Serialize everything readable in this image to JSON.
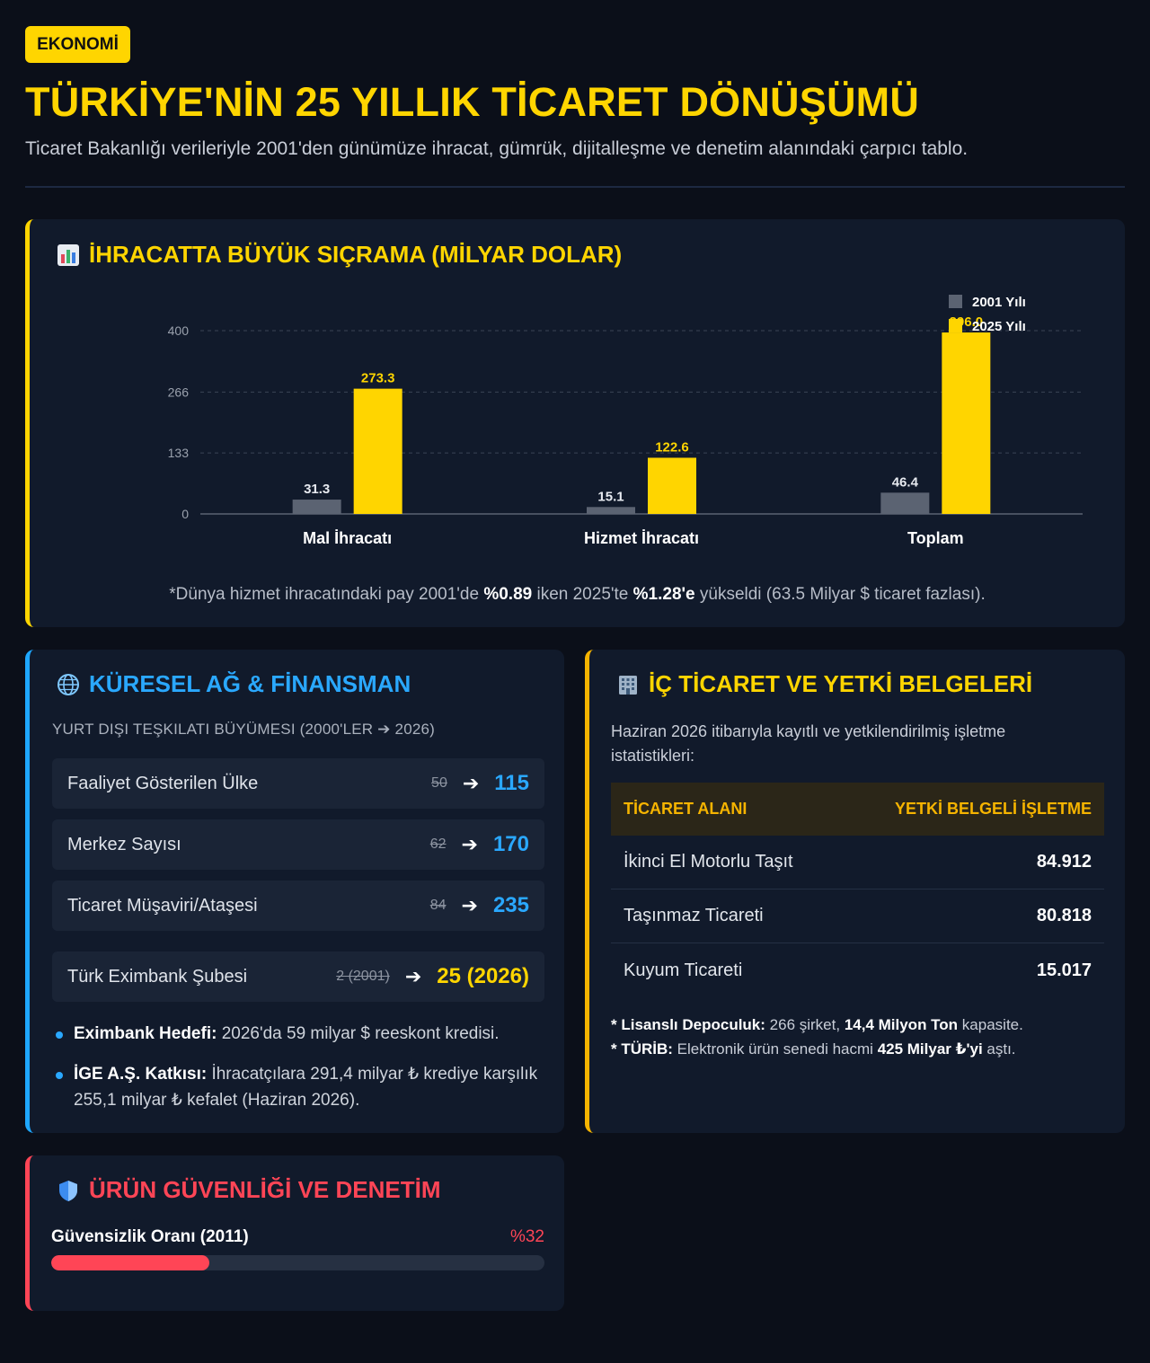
{
  "header": {
    "badge": "EKONOMİ",
    "title": "TÜRKİYE'NİN 25 YILLIK TİCARET DÖNÜŞÜMÜ",
    "subtitle": "Ticaret Bakanlığı verileriyle 2001'den günümüze ihracat, gümrük, dijitalleşme ve denetim alanındaki çarpıcı tablo."
  },
  "exports_card": {
    "title": "İHRACATTA BÜYÜK SIÇRAMA (MİLYAR DOLAR)",
    "icon": "bar-chart-icon",
    "note_pre": "*Dünya hizmet ihracatındaki pay 2001'de ",
    "note_b1": "%0.89",
    "note_mid": " iken 2025'te ",
    "note_b2": "%1.28'e",
    "note_post": " yükseldi (63.5 Milyar $ ticaret fazlası)."
  },
  "chart_data": {
    "type": "bar",
    "categories": [
      "Mal İhracatı",
      "Hizmet İhracatı",
      "Toplam"
    ],
    "series": [
      {
        "name": "2001 Yılı",
        "values": [
          31.3,
          15.1,
          46.4
        ],
        "color": "#5b6372"
      },
      {
        "name": "2025 Yılı",
        "values": [
          273.3,
          122.6,
          396.0
        ],
        "color": "#ffd500"
      }
    ],
    "data_labels": [
      [
        "31.3",
        "15.1",
        "46.4"
      ],
      [
        "273.3",
        "122.6",
        "396.0"
      ]
    ],
    "yticks": [
      0,
      133,
      266,
      400
    ],
    "ylim": [
      0,
      400
    ],
    "grid": true,
    "legend": "top-right",
    "xlabel": "",
    "ylabel": ""
  },
  "global_card": {
    "title": "KÜRESEL AĞ & FİNANSMAN",
    "icon": "globe-icon",
    "caption": "YURT DIŞI TEŞKILATI BÜYÜMESI (2000'LER ➔ 2026)",
    "rows": [
      {
        "label": "Faaliyet Gösterilen Ülke",
        "old": "50",
        "new": "115"
      },
      {
        "label": "Merkez Sayısı",
        "old": "62",
        "new": "170"
      },
      {
        "label": "Ticaret Müşaviri/Ataşesi",
        "old": "84",
        "new": "235"
      },
      {
        "label": "Türk Eximbank Şubesi",
        "old": "2 (2001)",
        "new": "25 (2026)"
      }
    ],
    "arrow": "➔",
    "bullets": [
      {
        "bold": "Eximbank Hedefi:",
        "text": " 2026'da 59 milyar $ reeskont kredisi."
      },
      {
        "bold": "İGE A.Ş. Katkısı:",
        "text": " İhracatçılara 291,4 milyar ₺ krediye karşılık 255,1 milyar ₺ kefalet (Haziran 2026)."
      }
    ]
  },
  "domestic_card": {
    "title": "İÇ TİCARET VE YETKİ BELGELERİ",
    "icon": "building-icon",
    "description": "Haziran 2026 itibarıyla kayıtlı ve yetkilendirilmiş işletme istatistikleri:",
    "col1": "TİCARET ALANI",
    "col2": "YETKİ BELGELİ İŞLETME",
    "rows": [
      {
        "area": "İkinci El Motorlu Taşıt",
        "count": "84.912"
      },
      {
        "area": "Taşınmaz Ticareti",
        "count": "80.818"
      },
      {
        "area": "Kuyum Ticareti",
        "count": "15.017"
      }
    ],
    "note1_bold": "* Lisanslı Depoculuk:",
    "note1_mid": " 266 şirket, ",
    "note1_bold2": "14,4 Milyon Ton",
    "note1_post": " kapasite.",
    "note2_bold": "* TÜRİB:",
    "note2_mid": " Elektronik ürün senedi hacmi ",
    "note2_bold2": "425 Milyar ₺'yi",
    "note2_post": " aştı."
  },
  "safety_card": {
    "title": "ÜRÜN GÜVENLİĞİ VE DENETİM",
    "icon": "shield-icon",
    "progress_label": "Güvensizlik Oranı (2011)",
    "progress_value": "%32",
    "progress_percent": 32
  }
}
